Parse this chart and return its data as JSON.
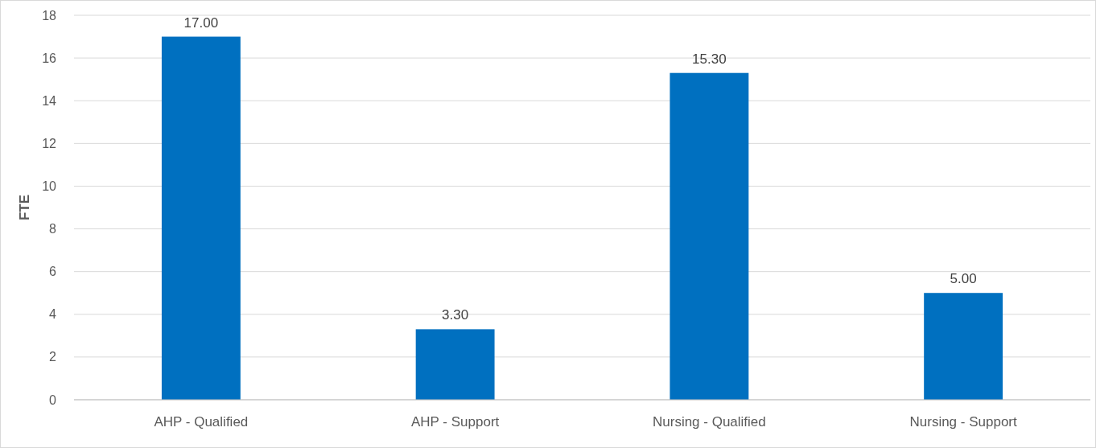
{
  "chart_data": {
    "type": "bar",
    "ylabel": "FTE",
    "categories": [
      "AHP - Qualified",
      "AHP - Support",
      "Nursing - Qualified",
      "Nursing - Support"
    ],
    "values": [
      17,
      3.3,
      15.3,
      5
    ],
    "color": "#0070c0",
    "value_labels": [
      "17.00",
      "3.30",
      "15.30",
      "5.00"
    ],
    "ylim": [
      0,
      18
    ],
    "yticks": [
      0,
      2,
      4,
      6,
      8,
      10,
      12,
      14,
      16,
      18
    ],
    "grid": "y"
  }
}
